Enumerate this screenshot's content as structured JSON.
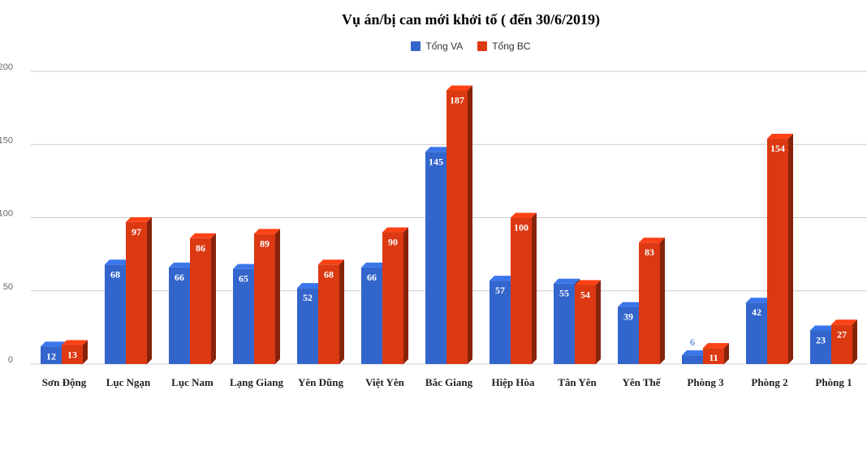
{
  "chart_data": {
    "type": "bar",
    "title": "Vụ án/bị can mới khởi tố ( đến 30/6/2019)",
    "categories": [
      "Sơn Động",
      "Lục Ngạn",
      "Lục Nam",
      "Lạng Giang",
      "Yên Dũng",
      "Việt Yên",
      "Bắc Giang",
      "Hiệp Hòa",
      "Tân Yên",
      "Yên Thế",
      "Phòng 3",
      "Phòng 2",
      "Phòng 1"
    ],
    "series": [
      {
        "name": "Tổng VA",
        "color": "#3366cc",
        "values": [
          12,
          68,
          66,
          65,
          52,
          66,
          145,
          57,
          55,
          39,
          6,
          42,
          23
        ]
      },
      {
        "name": "Tổng BC",
        "color": "#dc3912",
        "values": [
          13,
          97,
          86,
          89,
          68,
          90,
          187,
          100,
          54,
          83,
          11,
          154,
          27
        ]
      }
    ],
    "y_ticks": [
      "0",
      "50",
      "100",
      "150",
      "200"
    ],
    "ylim": [
      0,
      200
    ],
    "legend_position": "top",
    "grid": true,
    "style": "3d"
  }
}
